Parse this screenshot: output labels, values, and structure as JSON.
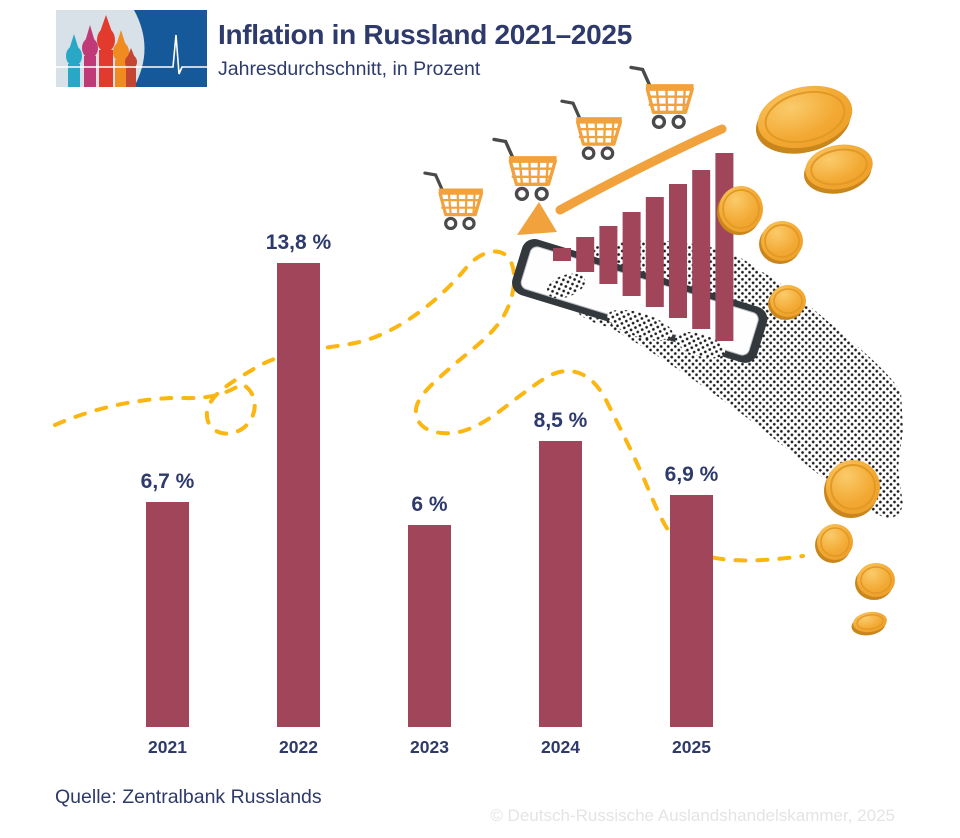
{
  "header": {
    "title": "Inflation in Russland 2021–2025",
    "subtitle": "Jahresdurchschnitt, in Prozent",
    "logo": {
      "icon": "st-basils-cathedral-pulse-logo"
    }
  },
  "chart_data": {
    "type": "bar",
    "title": "Inflation in Russland 2021–2025",
    "subtitle": "Jahresdurchschnitt, in Prozent",
    "categories": [
      "2021",
      "2022",
      "2023",
      "2024",
      "2025"
    ],
    "values": [
      6.7,
      13.8,
      6.0,
      8.5,
      6.9
    ],
    "value_labels": [
      "6,7 %",
      "13,8 %",
      "6 %",
      "8,5 %",
      "6,9 %"
    ],
    "unit": "%",
    "ylim": [
      0,
      15
    ],
    "gridlines": false,
    "axes_visible": false,
    "bar_color": "#A1455A",
    "source": "Quelle: Zentralbank Russlands",
    "copyright": "© Deutsch-Russische Auslandshandelskammer, 2025"
  },
  "footer": {
    "source": "Quelle: Zentralbank Russlands",
    "copyright": "© Deutsch-Russische Auslandshandelskammer, 2025"
  },
  "decoration": {
    "shopping_carts": {
      "icon": "shopping-cart-icon",
      "count": 4
    },
    "arrow": {
      "icon": "curved-arrow-down-left-icon",
      "color": "#F2A23C"
    },
    "phone": {
      "icon": "smartphone-in-hand-icon",
      "frame_color": "#33383C"
    },
    "hand": {
      "icon": "halftone-hand-arm",
      "style": "halftone-dots"
    },
    "coins": {
      "icon": "gold-coin-icon",
      "count": 9,
      "color": "#F5AF3E"
    },
    "dashed_line": {
      "icon": "winding-dashed-line",
      "color": "#FBB612"
    },
    "phone_chart": {
      "type": "bar",
      "bar_color": "#A1455A",
      "tops": [
        248,
        237,
        226,
        212,
        197,
        184,
        170,
        153
      ],
      "bottoms": [
        261,
        272,
        284,
        296,
        307,
        318,
        329,
        341
      ]
    }
  },
  "colors": {
    "bar": "#A1455A",
    "navy": "#2D3A6B",
    "orange": "#F2A23C",
    "dash": "#FBB612",
    "coin": "#F5AF3E",
    "logo_blue": "#15599B",
    "logo_bg": "#D8E0E8",
    "copyright": "#E4E4E4"
  }
}
